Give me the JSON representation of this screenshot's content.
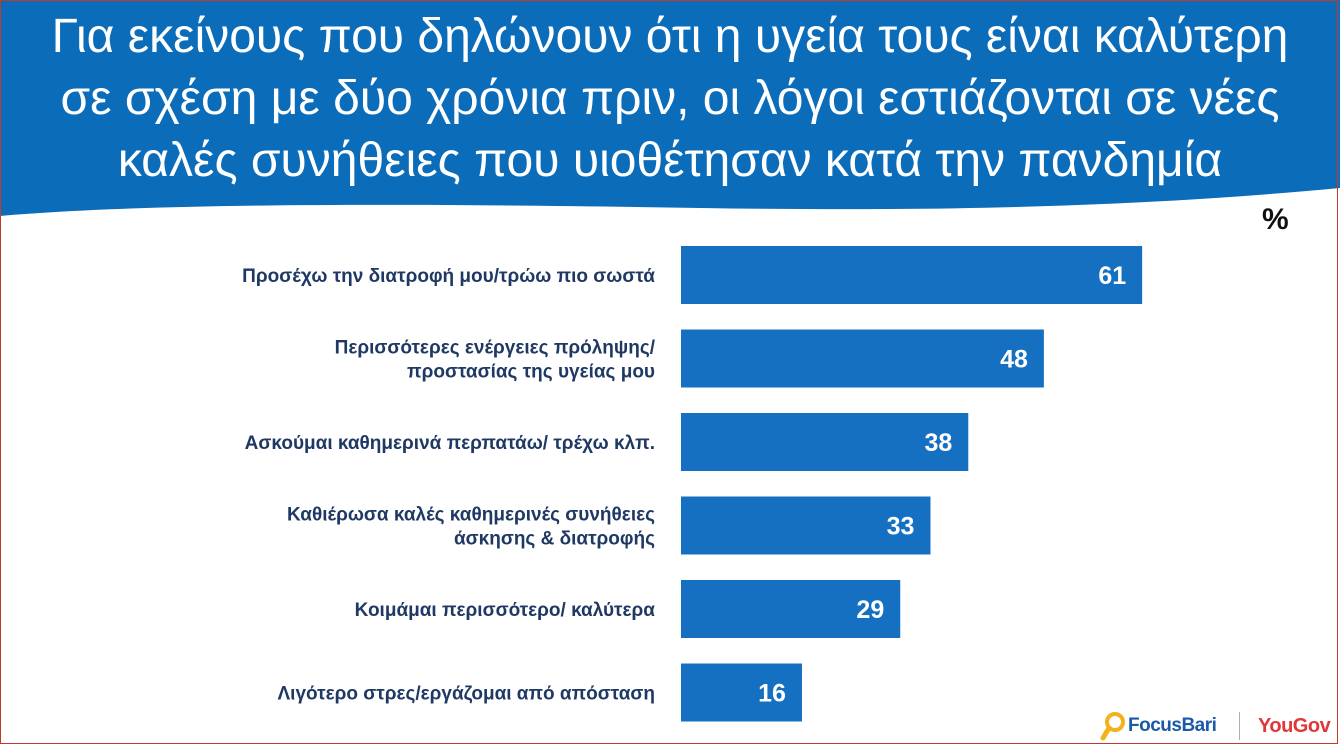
{
  "header": {
    "title_lines": [
      "Για εκείνους που δηλώνουν ότι η υγεία τους είναι καλύτερη",
      "σε σχέση με δύο χρόνια πριν, οι λόγοι εστιάζονται σε νέες",
      "καλές συνήθειες που υιοθέτησαν κατά την πανδημία"
    ],
    "background_color": "#0b6cba"
  },
  "chart_data": {
    "type": "bar",
    "orientation": "horizontal",
    "unit": "%",
    "categories": [
      [
        "Προσέχω την διατροφή μου/τρώω πιο σωστά"
      ],
      [
        "Περισσότερες ενέργειες πρόληψης/",
        "προστασίας της υγείας μου"
      ],
      [
        "Ασκούμαι καθημερινά περπατάω/ τρέχω κλπ."
      ],
      [
        "Καθιέρωσα καλές καθημερινές συνήθειες",
        "άσκησης & διατροφής"
      ],
      [
        "Κοιμάμαι περισσότερο/ καλύτερα"
      ],
      [
        "Λιγότερο στρες/εργάζομαι από απόσταση"
      ]
    ],
    "values": [
      61,
      48,
      38,
      33,
      29,
      16
    ],
    "bar_color": "#1670c1",
    "label_color": "#1f3864",
    "value_label_color": "#ffffff",
    "grid": false
  },
  "footer": {
    "logo_focusbari": "FocusBari",
    "logo_yougov": "YouGov"
  }
}
